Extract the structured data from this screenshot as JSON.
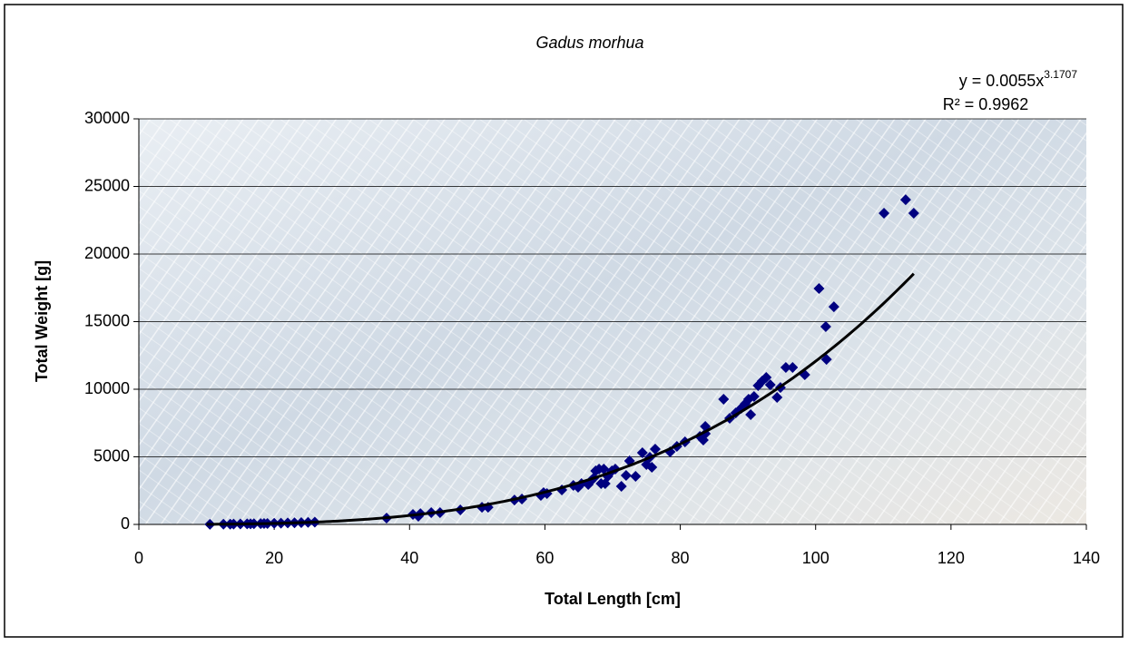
{
  "chart_data": {
    "type": "scatter",
    "title": "Gadus morhua",
    "x_label": "Total Length [cm]",
    "y_label": "Total Weight [g]",
    "x": [
      10.5,
      12.5,
      13.5,
      14,
      15,
      16,
      16.5,
      17,
      18,
      18.5,
      19,
      20,
      21,
      22,
      23,
      24,
      25,
      26,
      36.6,
      40.5,
      41.3,
      41.6,
      43.2,
      44.5,
      47.5,
      50.7,
      51.6,
      55.5,
      56.6,
      59.4,
      59.8,
      60.3,
      62.5,
      64.2,
      64.9,
      65.4,
      66.4,
      66.8,
      67.2,
      67.5,
      68,
      68.3,
      68.7,
      68.9,
      69.3,
      69.9,
      70.4,
      71.3,
      72,
      72.5,
      73.4,
      74.4,
      75,
      75.5,
      75.8,
      76.3,
      78.5,
      79.5,
      80.7,
      82.9,
      83.4,
      83.7,
      83.7,
      86.4,
      87.3,
      88.2,
      89,
      89.6,
      90.1,
      90.4,
      90.9,
      91.5,
      92.1,
      92.7,
      93.3,
      94.3,
      94.8,
      95.6,
      96.6,
      98.4,
      100.5,
      101.5,
      101.6,
      102.7,
      110.1,
      113.3,
      114.5
    ],
    "values": [
      10,
      15,
      20,
      25,
      30,
      40,
      45,
      50,
      60,
      65,
      70,
      80,
      90,
      105,
      120,
      135,
      150,
      170,
      470,
      740,
      600,
      800,
      870,
      870,
      1070,
      1270,
      1270,
      1800,
      1880,
      2150,
      2350,
      2280,
      2550,
      2890,
      2750,
      3020,
      2950,
      3220,
      3420,
      3960,
      4090,
      3020,
      4090,
      3020,
      3560,
      3960,
      4090,
      2820,
      3620,
      4700,
      3560,
      5300,
      4430,
      4970,
      4230,
      5570,
      5370,
      5770,
      6110,
      6510,
      6240,
      6710,
      7250,
      9260,
      7850,
      8250,
      8590,
      8930,
      9260,
      8120,
      9460,
      10270,
      10600,
      10870,
      10330,
      9400,
      10130,
      11610,
      11610,
      11070,
      17450,
      14630,
      12210,
      16100,
      23020,
      24020,
      23020
    ],
    "color": "#000080",
    "trendline": {
      "label": "y = 0.0055x",
      "label_exponent": "3.1707",
      "r2_label": "R² = 0.9962",
      "coefficient": 0.0055,
      "exponent": 3.1707,
      "x_start": 10,
      "x_end": 114.5,
      "color": "#000000"
    },
    "xlim": [
      0,
      140
    ],
    "xticks": [
      0,
      20,
      40,
      60,
      80,
      100,
      120,
      140
    ],
    "ylim": [
      0,
      30000
    ],
    "yticks": [
      0,
      5000,
      10000,
      15000,
      20000,
      25000,
      30000
    ],
    "grid": true
  }
}
